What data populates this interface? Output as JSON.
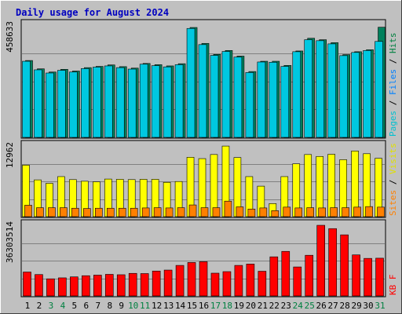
{
  "chart_data": {
    "type": "bar",
    "title": "Daily usage for August 2024",
    "days": [
      "1",
      "2",
      "3",
      "4",
      "5",
      "6",
      "7",
      "8",
      "9",
      "10",
      "11",
      "12",
      "13",
      "14",
      "15",
      "16",
      "17",
      "18",
      "19",
      "20",
      "21",
      "22",
      "23",
      "24",
      "25",
      "26",
      "27",
      "28",
      "29",
      "30",
      "31"
    ],
    "weekend_days": [
      "3",
      "4",
      "10",
      "11",
      "17",
      "18",
      "24",
      "25",
      "31"
    ],
    "panels": [
      {
        "id": "top",
        "ymax_label": "458633",
        "ymax": 458633,
        "right_label": [
          {
            "text": "Pages",
            "color": "#00c0d0"
          },
          {
            "text": " / ",
            "color": "#000000"
          },
          {
            "text": "Files",
            "color": "#0080ff"
          },
          {
            "text": " / ",
            "color": "#000000"
          },
          {
            "text": "Hits",
            "color": "#008040"
          }
        ],
        "series": [
          {
            "key": "hits",
            "color": "#00805c",
            "values": [
              314000,
              280000,
              267000,
              278000,
              271000,
              285000,
              290000,
              296000,
              289000,
              283000,
              302000,
              297000,
              292000,
              301000,
              449000,
              384000,
              339000,
              355000,
              332000,
              269000,
              311000,
              311000,
              294000,
              353000,
              405000,
              399000,
              387000,
              338000,
              350000,
              358000,
              450000
            ]
          },
          {
            "key": "files",
            "color": "#00c8e0",
            "values": [
              311000,
              276000,
              263000,
              274000,
              267000,
              281000,
              287000,
              292000,
              285000,
              279000,
              299000,
              293000,
              288000,
              297000,
              445000,
              379000,
              335000,
              351000,
              328000,
              265000,
              308000,
              307000,
              290000,
              350000,
              399000,
              395000,
              382000,
              334000,
              347000,
              355000,
              392000
            ]
          },
          {
            "key": "pages",
            "color": "#00e0ff",
            "values": [
              311000,
              276000,
              263000,
              274000,
              267000,
              281000,
              287000,
              292000,
              285000,
              279000,
              299000,
              293000,
              288000,
              297000,
              445000,
              379000,
              335000,
              351000,
              328000,
              265000,
              308000,
              307000,
              290000,
              350000,
              399000,
              395000,
              382000,
              334000,
              347000,
              355000,
              392000
            ]
          }
        ]
      },
      {
        "id": "middle",
        "ymax_label": "12962",
        "ymax": 12962,
        "right_label": [
          {
            "text": "Sites",
            "color": "#ff8000"
          },
          {
            "text": " / ",
            "color": "#000000"
          },
          {
            "text": "Visits",
            "color": "#e0e000"
          }
        ],
        "series": [
          {
            "key": "visits",
            "color": "#ffff00",
            "values": [
              9450,
              6750,
              6120,
              7350,
              6800,
              6500,
              6400,
              6900,
              6850,
              6800,
              6850,
              6850,
              6300,
              6450,
              10900,
              10650,
              11400,
              12950,
              10850,
              7350,
              5600,
              2400,
              7350,
              9700,
              11400,
              11050,
              11450,
              10450,
              12050,
              11550,
              10700
            ]
          },
          {
            "key": "sites",
            "color": "#ff8000",
            "values": [
              2100,
              1650,
              1650,
              1650,
              1550,
              1500,
              1550,
              1550,
              1550,
              1550,
              1600,
              1650,
              1600,
              1650,
              2150,
              1650,
              1650,
              2850,
              1800,
              1400,
              1600,
              1100,
              1750,
              1600,
              1650,
              1600,
              1650,
              1650,
              1750,
              1850,
              1750
            ]
          }
        ]
      },
      {
        "id": "bottom",
        "ymax_label": "36303514",
        "ymax": 36303514,
        "right_label": [
          {
            "text": "KB F",
            "color": "#ff0000"
          }
        ],
        "series": [
          {
            "key": "kbytes",
            "color": "#ff0000",
            "values": [
              12300000,
              11000000,
              8800000,
              9300000,
              9800000,
              10400000,
              10700000,
              11100000,
              10900000,
              11600000,
              11500000,
              12800000,
              13300000,
              15700000,
              17200000,
              17600000,
              11700000,
              12500000,
              15700000,
              16400000,
              12700000,
              20100000,
              22900000,
              14900000,
              20900000,
              36300000,
              34600000,
              31400000,
              21100000,
              19300000,
              19400000
            ]
          }
        ]
      }
    ]
  }
}
